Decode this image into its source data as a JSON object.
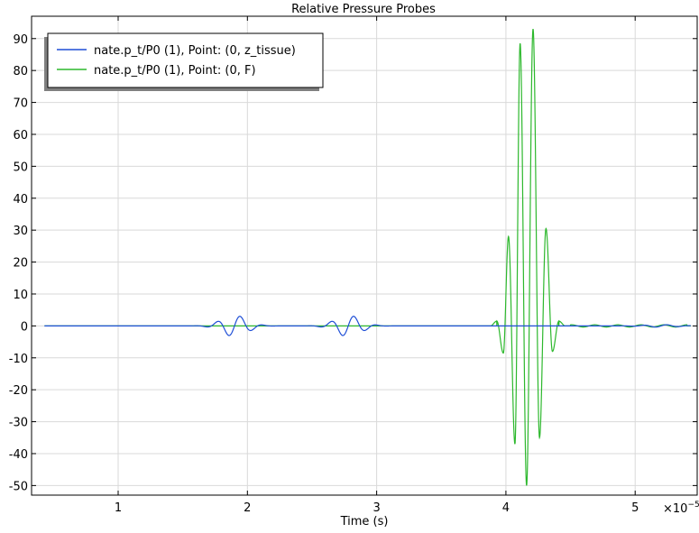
{
  "chart_data": {
    "type": "line",
    "title": "Relative Pressure Probes",
    "xlabel": "Time (s)",
    "ylabel": "",
    "x_multiplier": "×10",
    "x_multiplier_exp": "−5",
    "xlim": [
      0.33,
      5.48
    ],
    "ylim": [
      -53,
      97
    ],
    "xticks": [
      1,
      2,
      3,
      4,
      5
    ],
    "yticks": [
      -50,
      -40,
      -30,
      -20,
      -10,
      0,
      10,
      20,
      30,
      40,
      50,
      60,
      70,
      80,
      90
    ],
    "grid": true,
    "legend_position": "top-left",
    "series": [
      {
        "name": "nate.p_t/P0 (1), Point: (0, z_tissue)",
        "color": "#1f4fd6",
        "packets": [
          {
            "center": 1.9,
            "amplitude": 3.3,
            "freq": 5.6,
            "sigma": 0.1
          },
          {
            "center": 2.78,
            "amplitude": 3.3,
            "freq": 5.6,
            "sigma": 0.1
          },
          {
            "center": 5.2,
            "amplitude": 0.4,
            "freq": 5.6,
            "sigma": 0.12
          }
        ],
        "x_start": 0.43,
        "x_end": 5.43
      },
      {
        "name": "nate.p_t/P0 (1), Point: (0, F)",
        "color": "#2db82d",
        "peaks": [
          {
            "x": 3.93,
            "y": 1.5
          },
          {
            "x": 3.98,
            "y": -8.5
          },
          {
            "x": 4.02,
            "y": 28
          },
          {
            "x": 4.07,
            "y": -37
          },
          {
            "x": 4.11,
            "y": 88.5
          },
          {
            "x": 4.16,
            "y": -50
          },
          {
            "x": 4.21,
            "y": 93
          },
          {
            "x": 4.26,
            "y": -35
          },
          {
            "x": 4.31,
            "y": 30.5
          },
          {
            "x": 4.36,
            "y": -8
          },
          {
            "x": 4.41,
            "y": 1.5
          }
        ],
        "x_start": 0.43,
        "x_end": 5.43,
        "tail": {
          "start": 4.5,
          "end": 5.4,
          "amplitude": 0.35,
          "freq": 5.6
        }
      }
    ]
  }
}
